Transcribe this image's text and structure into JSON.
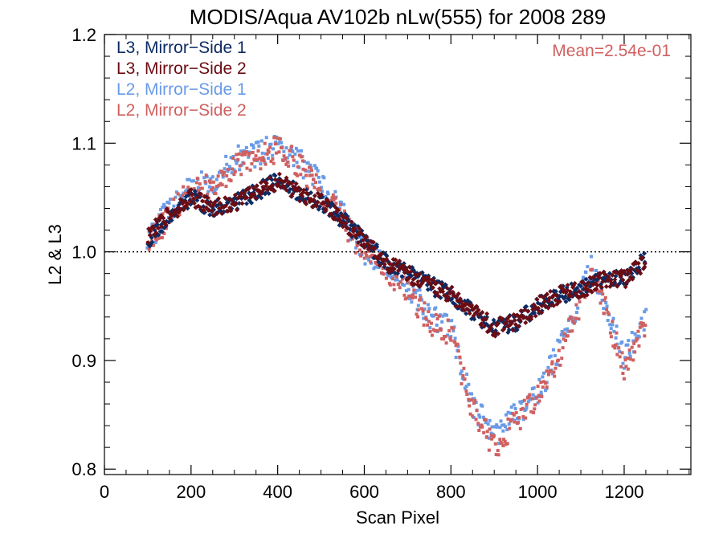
{
  "chart_data": {
    "type": "scatter",
    "title": "MODIS/Aqua AV102b nLw(555) for 2008 289",
    "xlabel": "Scan Pixel",
    "ylabel": "L2 & L3",
    "xlim": [
      0,
      1354
    ],
    "ylim": [
      0.795,
      1.2
    ],
    "xticks": [
      0,
      200,
      400,
      600,
      800,
      1000,
      1200
    ],
    "xtick_labels": [
      "0",
      "200",
      "400",
      "600",
      "800",
      "1000",
      "1200"
    ],
    "xminor_step": 50,
    "yticks": [
      0.8,
      0.9,
      1.0,
      1.1,
      1.2
    ],
    "ytick_labels": [
      "0.8",
      "0.9",
      "1.0",
      "1.1",
      "1.2"
    ],
    "yminor_step": 0.02,
    "reference_line": 1.0,
    "annotation": "Mean=2.54e-01",
    "annotation_color": "#d06060",
    "legend_placement": "top-left",
    "series": [
      {
        "name": "L3, Mirror−Side 1",
        "color": "#0d2b63",
        "marker": "diamond",
        "x": [
          100,
          150,
          200,
          250,
          300,
          350,
          400,
          450,
          500,
          550,
          600,
          650,
          700,
          750,
          800,
          850,
          900,
          950,
          1000,
          1050,
          1100,
          1150,
          1200,
          1250
        ],
        "y": [
          1.01,
          1.035,
          1.05,
          1.04,
          1.045,
          1.055,
          1.065,
          1.055,
          1.045,
          1.03,
          1.01,
          0.99,
          0.98,
          0.97,
          0.96,
          0.945,
          0.93,
          0.935,
          0.95,
          0.96,
          0.965,
          0.975,
          0.975,
          0.995
        ]
      },
      {
        "name": "L3, Mirror−Side 2",
        "color": "#6b0d14",
        "marker": "diamond",
        "x": [
          100,
          150,
          200,
          250,
          300,
          350,
          400,
          450,
          500,
          550,
          600,
          650,
          700,
          750,
          800,
          850,
          900,
          950,
          1000,
          1050,
          1100,
          1150,
          1200,
          1250
        ],
        "y": [
          1.015,
          1.035,
          1.05,
          1.04,
          1.045,
          1.055,
          1.065,
          1.055,
          1.045,
          1.03,
          1.01,
          0.99,
          0.98,
          0.97,
          0.96,
          0.945,
          0.93,
          0.935,
          0.95,
          0.96,
          0.965,
          0.975,
          0.975,
          0.99
        ]
      },
      {
        "name": "L2, Mirror−Side 1",
        "color": "#6a9be6",
        "marker": "square",
        "x": [
          100,
          150,
          200,
          250,
          300,
          350,
          400,
          450,
          500,
          550,
          600,
          650,
          700,
          750,
          800,
          850,
          900,
          950,
          1000,
          1050,
          1100,
          1125,
          1150,
          1200,
          1250
        ],
        "y": [
          1.01,
          1.04,
          1.06,
          1.065,
          1.085,
          1.09,
          1.1,
          1.085,
          1.06,
          1.035,
          1.0,
          0.99,
          0.97,
          0.94,
          0.93,
          0.86,
          0.83,
          0.85,
          0.87,
          0.91,
          0.96,
          0.985,
          0.96,
          0.9,
          0.94
        ]
      },
      {
        "name": "L2, Mirror−Side 2",
        "color": "#d06060",
        "marker": "square",
        "x": [
          100,
          150,
          200,
          250,
          300,
          350,
          400,
          450,
          500,
          550,
          600,
          650,
          700,
          750,
          800,
          850,
          900,
          950,
          1000,
          1050,
          1100,
          1125,
          1150,
          1200,
          1250
        ],
        "y": [
          1.005,
          1.035,
          1.055,
          1.06,
          1.08,
          1.085,
          1.095,
          1.08,
          1.055,
          1.03,
          0.998,
          0.985,
          0.965,
          0.935,
          0.925,
          0.855,
          0.82,
          0.845,
          0.865,
          0.905,
          0.955,
          0.98,
          0.955,
          0.895,
          0.935
        ]
      }
    ]
  }
}
